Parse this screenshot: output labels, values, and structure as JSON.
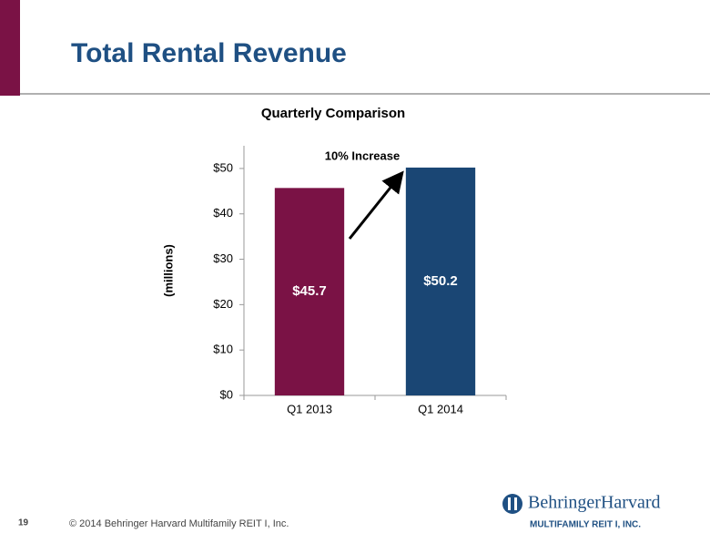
{
  "slide": {
    "title": "Total Rental Revenue",
    "page_number": "19",
    "footer": "© 2014 Behringer Harvard Multifamily REIT I, Inc.",
    "logo_name": "BehringerHarvard",
    "logo_subtitle": "MULTIFAMILY REIT I, INC."
  },
  "chart_data": {
    "type": "bar",
    "title": "Quarterly Comparison",
    "y_label": "(millions)",
    "annotation": "10% Increase",
    "categories": [
      "Q1 2013",
      "Q1 2014"
    ],
    "values": [
      45.7,
      50.2
    ],
    "value_labels": [
      "$45.7",
      "$50.2"
    ],
    "colors": [
      "#7a1245",
      "#1a4674"
    ],
    "ylim": [
      0,
      55
    ],
    "yticks": [
      {
        "value": 0,
        "label": "$0"
      },
      {
        "value": 10,
        "label": "$10"
      },
      {
        "value": 20,
        "label": "$20"
      },
      {
        "value": 30,
        "label": "$30"
      },
      {
        "value": 40,
        "label": "$40"
      },
      {
        "value": 50,
        "label": "$50"
      }
    ],
    "grid": false
  }
}
